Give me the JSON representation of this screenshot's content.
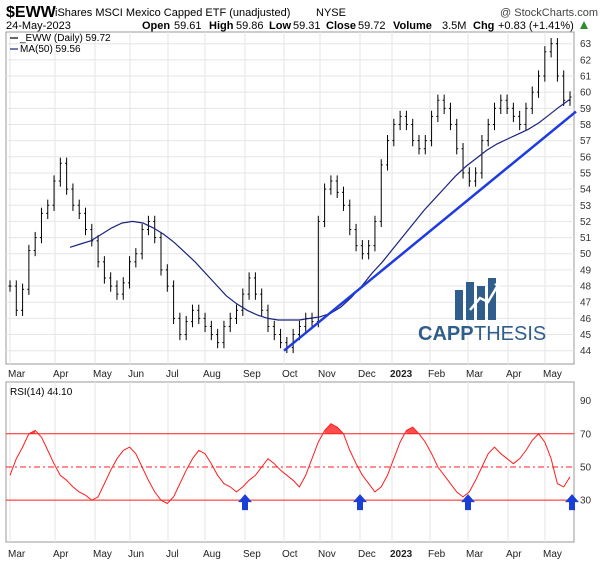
{
  "header": {
    "ticker": "$EWW",
    "name": "iShares MSCI Mexico Capped ETF (unadjusted)",
    "exchange": "NYSE",
    "watermark": "@ StockCharts.com",
    "date": "24-May-2023",
    "open_label": "Open",
    "open": "59.61",
    "high_label": "High",
    "high": "59.86",
    "low_label": "Low",
    "low": "59.31",
    "close_label": "Close",
    "close": "59.72",
    "volume_label": "Volume",
    "volume": "3.5M",
    "chg_label": "Chg",
    "chg": "+0.83 (+1.41%)",
    "chg_arrow": "up-triangle-icon",
    "legend_price": "_EWW (Daily) 59.72",
    "legend_ma": "MA(50) 59.56"
  },
  "logo": {
    "text_a": "CAPP",
    "text_b": "THESIS",
    "icon": "bar-chart-logo-icon"
  },
  "colors": {
    "price": "#000000",
    "ma": "#1a237e",
    "trend": "#1f3be0",
    "rsi": "#ff1f1f",
    "rsi_fill": "#ff1f1f",
    "arrow": "#1a3fd6",
    "logo_blue": "#2f5d8c",
    "grid": "#e6e6e6"
  },
  "chart_data": [
    {
      "type": "line",
      "name": "price",
      "y_ticks": [
        44,
        45,
        46,
        47,
        48,
        49,
        50,
        51,
        52,
        53,
        54,
        55,
        56,
        57,
        58,
        59,
        60,
        61,
        62,
        63
      ],
      "ylim": [
        43.3,
        63.6
      ],
      "x_labels": [
        "Mar",
        "Apr",
        "May",
        "Jun",
        "Jul",
        "Aug",
        "Sep",
        "Oct",
        "Nov",
        "Dec",
        "2023",
        "Feb",
        "Mar",
        "Apr",
        "May"
      ],
      "series": [
        {
          "name": "_EWW (Daily) 59.72",
          "values": [
            48.0,
            46.5,
            47.8,
            50.2,
            51.0,
            52.5,
            53.0,
            54.5,
            55.6,
            54.0,
            53.0,
            52.5,
            51.5,
            50.8,
            49.5,
            48.5,
            48.0,
            47.5,
            48.2,
            49.5,
            50.0,
            51.5,
            52.0,
            51.0,
            49.0,
            48.0,
            46.0,
            45.0,
            45.8,
            46.5,
            46.0,
            45.5,
            45.0,
            44.5,
            45.5,
            46.0,
            46.5,
            47.5,
            48.5,
            47.5,
            46.5,
            45.5,
            45.0,
            44.5,
            44.2,
            45.0,
            45.5,
            46.0,
            45.8,
            52.0,
            54.0,
            54.5,
            53.8,
            53.0,
            51.5,
            50.5,
            50.0,
            50.5,
            52.0,
            55.5,
            57.0,
            58.0,
            58.5,
            58.0,
            57.0,
            56.5,
            57.0,
            58.5,
            59.5,
            59.0,
            58.0,
            56.5,
            55.0,
            54.5,
            55.0,
            57.0,
            58.0,
            59.0,
            59.5,
            59.0,
            58.5,
            58.0,
            59.0,
            60.0,
            61.0,
            62.5,
            63.0,
            61.0,
            59.5,
            59.7
          ]
        },
        {
          "name": "MA(50) 59.56",
          "values": [
            50.4,
            50.6,
            50.8,
            51.2,
            51.6,
            51.9,
            52.0,
            51.9,
            51.6,
            51.2,
            50.7,
            50.1,
            49.5,
            48.8,
            48.1,
            47.4,
            46.9,
            46.5,
            46.2,
            46.0,
            45.9,
            45.9,
            45.9,
            46.0,
            46.1,
            46.3,
            46.7,
            47.3,
            48.0,
            48.8,
            49.5,
            50.3,
            51.1,
            51.9,
            52.7,
            53.4,
            54.1,
            54.8,
            55.4,
            55.9,
            56.4,
            56.8,
            57.1,
            57.4,
            57.7,
            58.1,
            58.6,
            59.1,
            59.56
          ]
        }
      ],
      "trendline": {
        "from": {
          "x": "Oct",
          "y": 44.0
        },
        "to": {
          "x": "May",
          "y": 58.8
        }
      }
    },
    {
      "type": "line",
      "name": "rsi",
      "legend": "RSI(14) 44.10",
      "y_ticks": [
        30,
        50,
        70,
        90
      ],
      "ylim": [
        6,
        100
      ],
      "levels": [
        30,
        50,
        70
      ],
      "series": [
        {
          "name": "RSI(14) 44.10",
          "values": [
            45,
            55,
            62,
            70,
            72,
            68,
            60,
            52,
            45,
            42,
            38,
            35,
            33,
            30,
            32,
            40,
            48,
            55,
            60,
            62,
            58,
            50,
            42,
            35,
            30,
            28,
            32,
            40,
            48,
            55,
            60,
            58,
            52,
            45,
            40,
            38,
            35,
            38,
            42,
            45,
            50,
            55,
            52,
            48,
            45,
            42,
            38,
            45,
            55,
            65,
            72,
            76,
            74,
            70,
            60,
            52,
            45,
            40,
            35,
            38,
            45,
            55,
            65,
            72,
            74,
            70,
            65,
            58,
            50,
            45,
            40,
            35,
            32,
            35,
            42,
            50,
            58,
            62,
            58,
            55,
            52,
            55,
            60,
            66,
            70,
            65,
            55,
            40,
            38,
            44.1
          ]
        }
      ],
      "arrows_at": [
        "Sep",
        "Dec",
        "Mar",
        "May"
      ]
    }
  ]
}
